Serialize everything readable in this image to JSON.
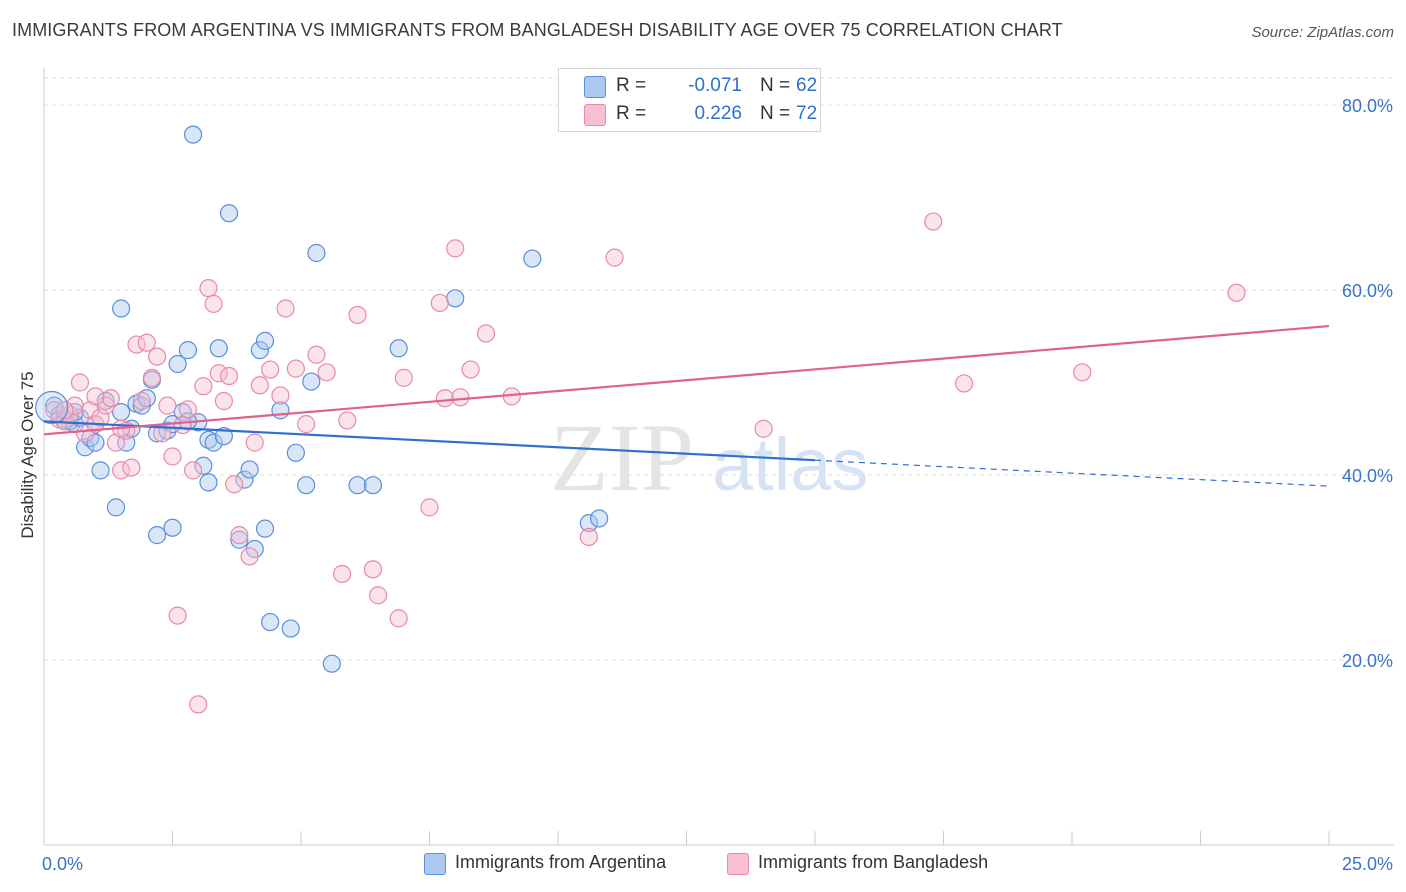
{
  "title": "IMMIGRANTS FROM ARGENTINA VS IMMIGRANTS FROM BANGLADESH DISABILITY AGE OVER 75 CORRELATION CHART",
  "source": "Source: ZipAtlas.com",
  "watermark": {
    "zip": "ZIP",
    "atlas": "atlas"
  },
  "colors": {
    "blue_fill": "#aac8f0",
    "blue_stroke": "#5b8fd9",
    "blue_line": "#2f6fd0",
    "pink_fill": "#f6c0d2",
    "pink_stroke": "#e889aa",
    "pink_line": "#e0608e",
    "axis_label": "#3b73c8",
    "grid": "#dddddd"
  },
  "legend": {
    "rows": [
      {
        "r_label": "R =",
        "r_value": "-0.071",
        "n_label": "N =",
        "n_value": "62",
        "color": "blue"
      },
      {
        "r_label": "R =",
        "r_value": "0.226",
        "n_label": "N =",
        "n_value": "72",
        "color": "pink"
      }
    ]
  },
  "bottom_legend": [
    {
      "label": "Immigrants from Argentina",
      "color": "blue"
    },
    {
      "label": "Immigrants from Bangladesh",
      "color": "pink"
    }
  ],
  "chart_data": {
    "type": "scatter",
    "title": "IMMIGRANTS FROM ARGENTINA VS IMMIGRANTS FROM BANGLADESH DISABILITY AGE OVER 75 CORRELATION CHART",
    "xlabel": "",
    "ylabel": "Disability Age Over 75",
    "xlim": [
      0,
      25
    ],
    "ylim": [
      0,
      84
    ],
    "x_tick_labels": [
      {
        "value": 0,
        "label": "0.0%"
      },
      {
        "value": 25,
        "label": "25.0%"
      }
    ],
    "y_tick_labels": [
      {
        "value": 20,
        "label": "20.0%"
      },
      {
        "value": 40,
        "label": "40.0%"
      },
      {
        "value": 60,
        "label": "60.0%"
      },
      {
        "value": 80,
        "label": "80.0%"
      }
    ],
    "grid": true,
    "series": [
      {
        "name": "Immigrants from Argentina",
        "color": "blue",
        "r": -0.071,
        "n": 62,
        "trend": {
          "x0": 0,
          "y0": 45.8,
          "x1": 15,
          "y1": 41.6,
          "dashed_to_x": 25,
          "dashed_to_y": 38.8
        },
        "points": [
          [
            0.2,
            47.5
          ],
          [
            0.3,
            46.5
          ],
          [
            0.4,
            46.0
          ],
          [
            0.5,
            45.8
          ],
          [
            0.6,
            45.5
          ],
          [
            0.7,
            46.2
          ],
          [
            0.8,
            43.0
          ],
          [
            0.9,
            44.0
          ],
          [
            1.0,
            43.5
          ],
          [
            1.1,
            40.5
          ],
          [
            1.2,
            48.0
          ],
          [
            1.4,
            36.5
          ],
          [
            1.5,
            46.8
          ],
          [
            1.5,
            58.0
          ],
          [
            1.6,
            43.5
          ],
          [
            1.7,
            45.0
          ],
          [
            1.8,
            47.7
          ],
          [
            1.9,
            47.5
          ],
          [
            2.0,
            48.3
          ],
          [
            2.1,
            50.3
          ],
          [
            2.2,
            44.5
          ],
          [
            2.2,
            33.5
          ],
          [
            2.4,
            44.8
          ],
          [
            2.5,
            45.5
          ],
          [
            2.5,
            34.3
          ],
          [
            2.6,
            52.0
          ],
          [
            2.7,
            46.8
          ],
          [
            2.8,
            53.5
          ],
          [
            2.9,
            76.8
          ],
          [
            3.0,
            45.7
          ],
          [
            3.1,
            41.0
          ],
          [
            3.2,
            39.2
          ],
          [
            3.2,
            43.8
          ],
          [
            3.3,
            43.5
          ],
          [
            3.4,
            53.7
          ],
          [
            3.5,
            44.2
          ],
          [
            3.6,
            68.3
          ],
          [
            3.8,
            33.0
          ],
          [
            3.9,
            39.5
          ],
          [
            4.0,
            40.6
          ],
          [
            4.1,
            32.0
          ],
          [
            4.2,
            53.5
          ],
          [
            4.3,
            54.5
          ],
          [
            4.3,
            34.2
          ],
          [
            4.4,
            24.1
          ],
          [
            4.6,
            47.0
          ],
          [
            4.8,
            23.4
          ],
          [
            4.9,
            42.4
          ],
          [
            5.1,
            38.9
          ],
          [
            5.2,
            50.1
          ],
          [
            5.3,
            64.0
          ],
          [
            5.6,
            19.6
          ],
          [
            6.1,
            38.9
          ],
          [
            6.4,
            38.9
          ],
          [
            6.9,
            53.7
          ],
          [
            8.0,
            59.1
          ],
          [
            9.5,
            63.4
          ],
          [
            10.6,
            34.8
          ],
          [
            10.8,
            35.3
          ],
          [
            1.0,
            45.5
          ],
          [
            2.8,
            45.8
          ],
          [
            0.6,
            46.8
          ]
        ]
      },
      {
        "name": "Immigrants from Bangladesh",
        "color": "pink",
        "r": 0.226,
        "n": 72,
        "trend": {
          "x0": 0,
          "y0": 44.4,
          "x1": 25,
          "y1": 56.1
        },
        "points": [
          [
            0.2,
            47.0
          ],
          [
            0.3,
            46.0
          ],
          [
            0.4,
            45.8
          ],
          [
            0.5,
            46.5
          ],
          [
            0.6,
            47.5
          ],
          [
            0.7,
            50.0
          ],
          [
            0.8,
            44.5
          ],
          [
            0.9,
            47.0
          ],
          [
            1.0,
            45.5
          ],
          [
            1.1,
            46.2
          ],
          [
            1.2,
            47.5
          ],
          [
            1.3,
            48.3
          ],
          [
            1.4,
            43.5
          ],
          [
            1.5,
            40.5
          ],
          [
            1.6,
            44.8
          ],
          [
            1.7,
            40.8
          ],
          [
            1.8,
            54.1
          ],
          [
            1.9,
            48.0
          ],
          [
            2.0,
            54.3
          ],
          [
            2.1,
            50.5
          ],
          [
            2.2,
            52.8
          ],
          [
            2.3,
            44.5
          ],
          [
            2.4,
            47.5
          ],
          [
            2.5,
            42.0
          ],
          [
            2.6,
            24.8
          ],
          [
            2.7,
            45.4
          ],
          [
            2.8,
            47.1
          ],
          [
            2.9,
            40.5
          ],
          [
            3.0,
            15.2
          ],
          [
            3.1,
            49.6
          ],
          [
            3.2,
            60.2
          ],
          [
            3.3,
            58.5
          ],
          [
            3.4,
            51.0
          ],
          [
            3.5,
            48.0
          ],
          [
            3.6,
            50.7
          ],
          [
            3.7,
            39.0
          ],
          [
            3.8,
            33.5
          ],
          [
            4.0,
            31.2
          ],
          [
            4.1,
            43.5
          ],
          [
            4.2,
            49.7
          ],
          [
            4.4,
            51.4
          ],
          [
            4.6,
            48.6
          ],
          [
            4.7,
            58.0
          ],
          [
            4.9,
            51.5
          ],
          [
            5.1,
            45.5
          ],
          [
            5.3,
            53.0
          ],
          [
            5.5,
            51.1
          ],
          [
            5.8,
            29.3
          ],
          [
            5.9,
            45.9
          ],
          [
            6.1,
            57.3
          ],
          [
            6.4,
            29.8
          ],
          [
            6.5,
            27.0
          ],
          [
            6.9,
            24.5
          ],
          [
            7.0,
            50.5
          ],
          [
            7.5,
            36.5
          ],
          [
            7.7,
            58.6
          ],
          [
            7.8,
            48.3
          ],
          [
            8.0,
            64.5
          ],
          [
            8.1,
            48.4
          ],
          [
            8.3,
            51.4
          ],
          [
            8.6,
            55.3
          ],
          [
            9.1,
            48.5
          ],
          [
            10.6,
            33.3
          ],
          [
            11.1,
            63.5
          ],
          [
            14.0,
            45.0
          ],
          [
            17.3,
            67.4
          ],
          [
            17.9,
            49.9
          ],
          [
            20.2,
            51.1
          ],
          [
            23.2,
            59.7
          ],
          [
            0.4,
            47.0
          ],
          [
            1.0,
            48.5
          ],
          [
            1.5,
            45.0
          ]
        ]
      }
    ]
  }
}
